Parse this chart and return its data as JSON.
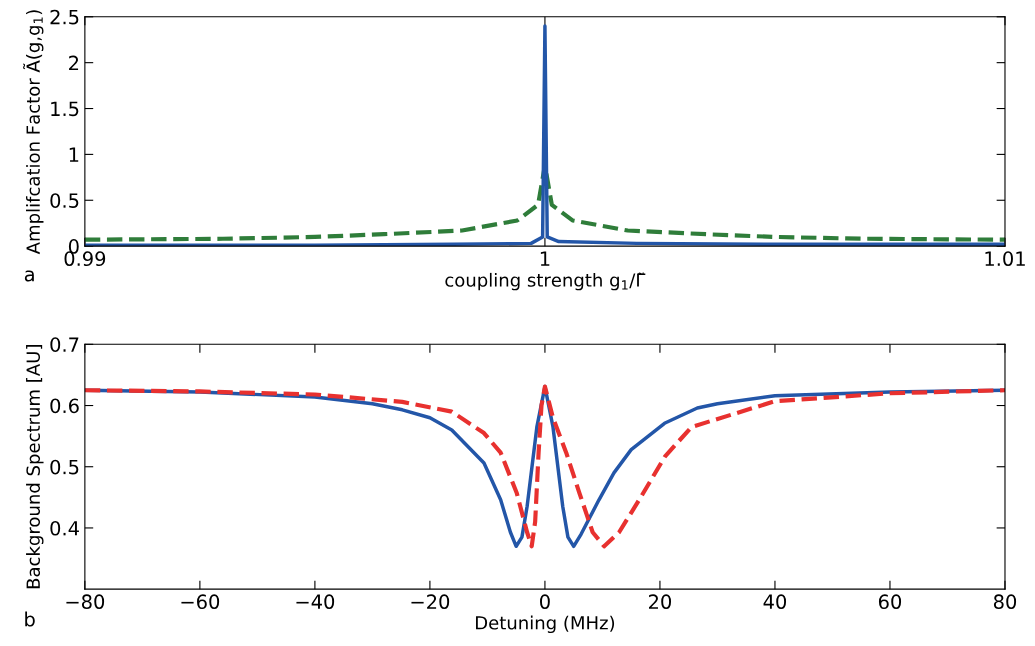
{
  "chart_data": [
    {
      "type": "line",
      "xlabel": "coupling strength g$_{1}$/Γ̃",
      "ylabel": "Amplifcation Factor Ã(g,g$_{1}$)",
      "annotations": [
        "a"
      ],
      "xlim": [
        0.99,
        1.01
      ],
      "xticks": [
        0.99,
        1,
        1.01
      ],
      "ylim": [
        0,
        2.5
      ],
      "yticks": [
        0,
        0.5,
        1,
        1.5,
        2,
        2.5
      ],
      "grid": false,
      "legend": false,
      "series": [
        {
          "color": "#2f7d3a",
          "line_style": "dashed",
          "x": [
            0.99,
            0.993,
            0.995,
            0.9965,
            0.9982,
            0.9994,
            0.99985,
            1.0,
            1.00015,
            1.0006,
            1.0018,
            1.0035,
            1.005,
            1.007,
            1.01
          ],
          "values": [
            0.07,
            0.08,
            0.1,
            0.13,
            0.17,
            0.28,
            0.45,
            0.88,
            0.45,
            0.28,
            0.17,
            0.13,
            0.1,
            0.08,
            0.07
          ]
        },
        {
          "color": "#2356a8",
          "line_style": "solid",
          "x": [
            0.99,
            0.995,
            0.998,
            0.9997,
            0.99995,
            1.0,
            1.00005,
            1.0003,
            1.002,
            1.005,
            1.01
          ],
          "values": [
            0.01,
            0.01,
            0.02,
            0.03,
            0.1,
            2.4,
            0.1,
            0.05,
            0.03,
            0.02,
            0.02
          ]
        }
      ]
    },
    {
      "type": "line",
      "xlabel": "Detuning (MHz)",
      "ylabel": "Background Spectrum [AU]",
      "annotations": [
        "b"
      ],
      "xlim": [
        -80,
        80
      ],
      "xticks": [
        {
          "value": -80,
          "label": "−80"
        },
        {
          "value": -60,
          "label": "−60"
        },
        {
          "value": -40,
          "label": "−40"
        },
        {
          "value": -20,
          "label": "−20"
        },
        0,
        20,
        40,
        60,
        80
      ],
      "ylim": [
        0.3,
        0.7
      ],
      "yticks": [
        0.4,
        0.5,
        0.6,
        0.7
      ],
      "grid": false,
      "legend": false,
      "series": [
        {
          "color": "#2356a8",
          "line_style": "solid",
          "x": [
            -80,
            -60,
            -40,
            -30,
            -24.8,
            -20,
            -16.2,
            -10.6,
            -7.7,
            -6,
            -5,
            -4,
            -3.1,
            -1.4,
            0,
            1.4,
            3.1,
            4,
            5,
            6.3,
            9.4,
            12,
            15,
            20.8,
            26.5,
            30,
            40,
            60,
            80
          ],
          "values": [
            0.625,
            0.622,
            0.614,
            0.603,
            0.593,
            0.58,
            0.56,
            0.506,
            0.446,
            0.393,
            0.37,
            0.385,
            0.435,
            0.565,
            0.631,
            0.565,
            0.435,
            0.385,
            0.37,
            0.39,
            0.446,
            0.49,
            0.528,
            0.571,
            0.596,
            0.603,
            0.616,
            0.622,
            0.625
          ]
        },
        {
          "color": "#e8312f",
          "line_style": "dashed",
          "x": [
            -80,
            -60,
            -40,
            -24.8,
            -16.2,
            -10.6,
            -7.7,
            -4.9,
            -3.1,
            -2.3,
            -1.7,
            -1.1,
            -0.6,
            0,
            1.4,
            3.7,
            6,
            8.3,
            10.3,
            12.9,
            16.4,
            20.9,
            25.5,
            40,
            60,
            80
          ],
          "values": [
            0.625,
            0.623,
            0.618,
            0.606,
            0.59,
            0.555,
            0.523,
            0.457,
            0.393,
            0.37,
            0.41,
            0.523,
            0.6,
            0.631,
            0.58,
            0.523,
            0.457,
            0.393,
            0.37,
            0.393,
            0.446,
            0.517,
            0.565,
            0.607,
            0.62,
            0.625
          ]
        }
      ]
    }
  ]
}
